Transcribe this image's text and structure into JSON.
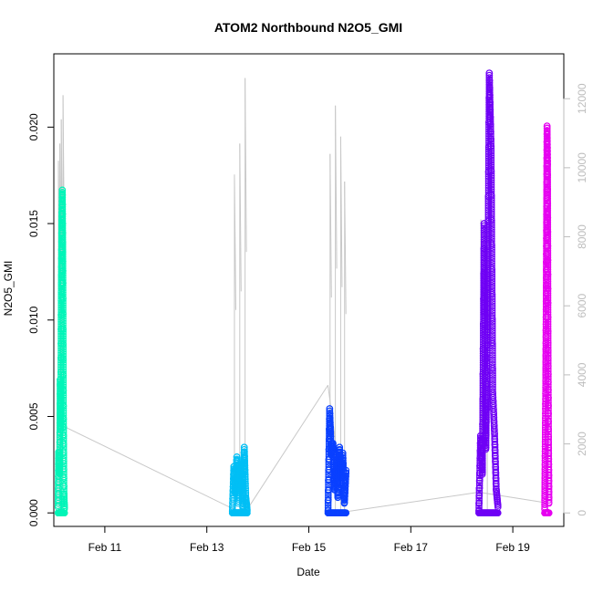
{
  "chart_data": {
    "type": "scatter",
    "title": "ATOM2 Northbound N2O5_GMI",
    "xlabel": "Date",
    "ylabel": "N2O5_GMI",
    "xlim": [
      "2018-02-10T00:00",
      "2018-02-20T00:00"
    ],
    "ylim": [
      -0.0007,
      0.0238
    ],
    "y2lim": [
      -390,
      13300
    ],
    "x_ticks": [
      {
        "label": "Feb 11",
        "date": "2018-02-11T00:00"
      },
      {
        "label": "Feb 13",
        "date": "2018-02-13T00:00"
      },
      {
        "label": "Feb 15",
        "date": "2018-02-15T00:00"
      },
      {
        "label": "Feb 17",
        "date": "2018-02-17T00:00"
      },
      {
        "label": "Feb 19",
        "date": "2018-02-19T00:00"
      }
    ],
    "y_ticks": [
      "0.000",
      "0.005",
      "0.010",
      "0.015",
      "0.020"
    ],
    "y2_ticks": [
      "0",
      "2000",
      "4000",
      "6000",
      "8000",
      "10000",
      "12000"
    ],
    "altitude_color": "#c8c8c8",
    "series": [
      {
        "color": "#00f5b8",
        "x_range": [
          "2018-02-10T02:00",
          "2018-02-10T05:00"
        ],
        "y_values": [
          0.0003,
          0.0032,
          0.002,
          0.0024,
          0.007,
          0.0042,
          0.011,
          0.015,
          0.0168,
          0.0123,
          0.005,
          0.001,
          0.0002
        ],
        "alt_spikes": [
          {
            "x": "2018-02-10T02:10",
            "y": 10200
          },
          {
            "x": "2018-02-10T02:50",
            "y": 10700
          },
          {
            "x": "2018-02-10T03:30",
            "y": 11400
          },
          {
            "x": "2018-02-10T04:20",
            "y": 12100
          }
        ]
      },
      {
        "color": "#00bff5",
        "x_range": [
          "2018-02-13T12:00",
          "2018-02-13T19:00"
        ],
        "y_values": [
          0.0001,
          0.0024,
          0.001,
          0.0029,
          0.0005,
          0.0017,
          0.0026,
          0.0003,
          0.0034,
          0.0008,
          0.0001
        ],
        "alt_spikes": [
          {
            "x": "2018-02-13T13:00",
            "y": 9800
          },
          {
            "x": "2018-02-13T15:30",
            "y": 10700
          },
          {
            "x": "2018-02-13T18:00",
            "y": 12600
          }
        ]
      },
      {
        "color": "#0a40ff",
        "x_range": [
          "2018-02-15T09:00",
          "2018-02-15T17:30"
        ],
        "y_values": [
          0.0001,
          0.0054,
          0.003,
          0.0036,
          0.0012,
          0.0029,
          0.0008,
          0.0034,
          0.0019,
          0.0031,
          0.0005,
          0.0022
        ],
        "alt_spikes": [
          {
            "x": "2018-02-15T10:00",
            "y": 10400
          },
          {
            "x": "2018-02-15T12:30",
            "y": 11800
          },
          {
            "x": "2018-02-15T15:00",
            "y": 10900
          },
          {
            "x": "2018-02-15T16:50",
            "y": 9600
          }
        ]
      },
      {
        "color": "#6f00f5",
        "x_range": [
          "2018-02-18T08:00",
          "2018-02-18T17:00"
        ],
        "y_values": [
          0.0001,
          0.004,
          0.002,
          0.015,
          0.0033,
          0.01,
          0.0228,
          0.019,
          0.0062,
          0.0041,
          0.0012,
          0.0003
        ],
        "alt_spikes": [
          {
            "x": "2018-02-18T09:00",
            "y": 8500
          },
          {
            "x": "2018-02-18T12:00",
            "y": 8300
          }
        ]
      },
      {
        "color": "#e600f0",
        "x_range": [
          "2018-02-19T15:00",
          "2018-02-19T17:00"
        ],
        "y_values": [
          0.0002,
          0.003,
          0.006,
          0.01,
          0.015,
          0.0201,
          0.018,
          0.009,
          0.004,
          0.0005
        ],
        "alt_spikes": []
      }
    ],
    "altitude_baseline": [
      {
        "x": "2018-02-10T05:00",
        "y": 2500
      },
      {
        "x": "2018-02-13T13:00",
        "y": 100
      },
      {
        "x": "2018-02-13T19:00",
        "y": 100
      },
      {
        "x": "2018-02-15T09:00",
        "y": 3700
      },
      {
        "x": "2018-02-15T17:00",
        "y": 30
      },
      {
        "x": "2018-02-18T08:00",
        "y": 600
      },
      {
        "x": "2018-02-19T15:00",
        "y": 300
      }
    ]
  }
}
